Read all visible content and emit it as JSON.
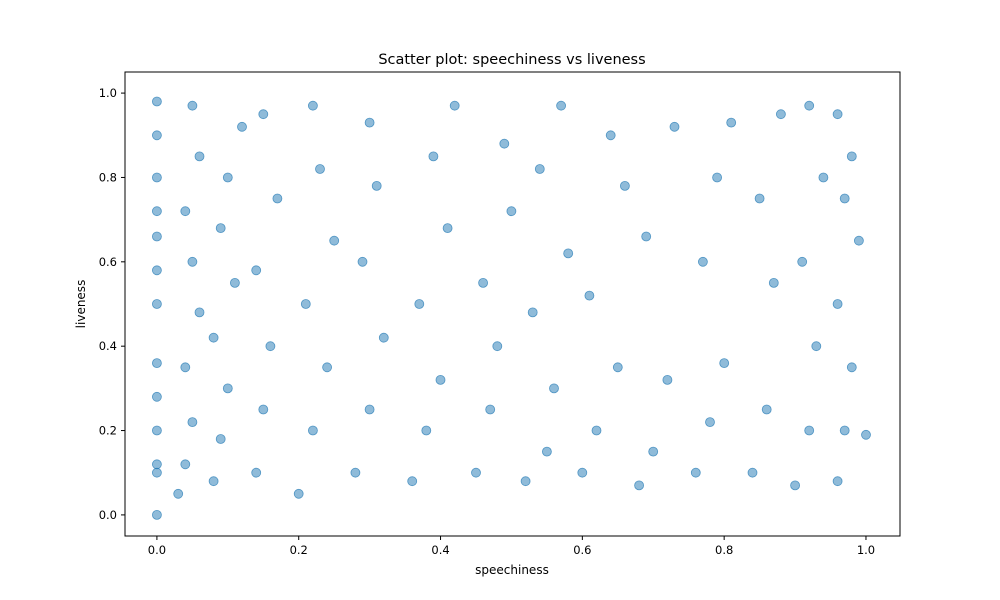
{
  "chart_data": {
    "type": "scatter",
    "title": "Scatter plot: speechiness vs liveness",
    "xlabel": "speechiness",
    "ylabel": "liveness",
    "xlim": [
      -0.045,
      1.048
    ],
    "ylim": [
      -0.05,
      1.05
    ],
    "xticks": [
      0.0,
      0.2,
      0.4,
      0.6,
      0.8,
      1.0
    ],
    "xtick_labels": [
      "0.0",
      "0.2",
      "0.4",
      "0.6",
      "0.8",
      "1.0"
    ],
    "yticks": [
      0.0,
      0.2,
      0.4,
      0.6,
      0.8,
      1.0
    ],
    "ytick_labels": [
      "0.0",
      "0.2",
      "0.4",
      "0.6",
      "0.8",
      "1.0"
    ],
    "grid": false,
    "marker_color": "#1f77b4",
    "marker_alpha": 0.5,
    "series": [
      {
        "points": [
          [
            0.0,
            0.0
          ],
          [
            0.0,
            0.1
          ],
          [
            0.0,
            0.12
          ],
          [
            0.0,
            0.2
          ],
          [
            0.0,
            0.28
          ],
          [
            0.0,
            0.36
          ],
          [
            0.0,
            0.5
          ],
          [
            0.0,
            0.58
          ],
          [
            0.0,
            0.66
          ],
          [
            0.0,
            0.72
          ],
          [
            0.0,
            0.8
          ],
          [
            0.0,
            0.9
          ],
          [
            0.0,
            0.98
          ],
          [
            0.03,
            0.05
          ],
          [
            0.04,
            0.12
          ],
          [
            0.05,
            0.22
          ],
          [
            0.04,
            0.35
          ],
          [
            0.06,
            0.48
          ],
          [
            0.05,
            0.6
          ],
          [
            0.04,
            0.72
          ],
          [
            0.06,
            0.85
          ],
          [
            0.05,
            0.97
          ],
          [
            0.08,
            0.08
          ],
          [
            0.09,
            0.18
          ],
          [
            0.1,
            0.3
          ],
          [
            0.08,
            0.42
          ],
          [
            0.11,
            0.55
          ],
          [
            0.09,
            0.68
          ],
          [
            0.1,
            0.8
          ],
          [
            0.12,
            0.92
          ],
          [
            0.14,
            0.1
          ],
          [
            0.15,
            0.25
          ],
          [
            0.16,
            0.4
          ],
          [
            0.14,
            0.58
          ],
          [
            0.17,
            0.75
          ],
          [
            0.15,
            0.95
          ],
          [
            0.2,
            0.05
          ],
          [
            0.22,
            0.2
          ],
          [
            0.24,
            0.35
          ],
          [
            0.21,
            0.5
          ],
          [
            0.25,
            0.65
          ],
          [
            0.23,
            0.82
          ],
          [
            0.22,
            0.97
          ],
          [
            0.28,
            0.1
          ],
          [
            0.3,
            0.25
          ],
          [
            0.32,
            0.42
          ],
          [
            0.29,
            0.6
          ],
          [
            0.31,
            0.78
          ],
          [
            0.3,
            0.93
          ],
          [
            0.36,
            0.08
          ],
          [
            0.38,
            0.2
          ],
          [
            0.4,
            0.32
          ],
          [
            0.37,
            0.5
          ],
          [
            0.41,
            0.68
          ],
          [
            0.39,
            0.85
          ],
          [
            0.42,
            0.97
          ],
          [
            0.45,
            0.1
          ],
          [
            0.47,
            0.25
          ],
          [
            0.48,
            0.4
          ],
          [
            0.46,
            0.55
          ],
          [
            0.5,
            0.72
          ],
          [
            0.49,
            0.88
          ],
          [
            0.52,
            0.08
          ],
          [
            0.55,
            0.15
          ],
          [
            0.56,
            0.3
          ],
          [
            0.53,
            0.48
          ],
          [
            0.58,
            0.62
          ],
          [
            0.54,
            0.82
          ],
          [
            0.57,
            0.97
          ],
          [
            0.6,
            0.1
          ],
          [
            0.62,
            0.2
          ],
          [
            0.65,
            0.35
          ],
          [
            0.61,
            0.52
          ],
          [
            0.66,
            0.78
          ],
          [
            0.64,
            0.9
          ],
          [
            0.68,
            0.07
          ],
          [
            0.7,
            0.15
          ],
          [
            0.72,
            0.32
          ],
          [
            0.69,
            0.66
          ],
          [
            0.73,
            0.92
          ],
          [
            0.76,
            0.1
          ],
          [
            0.78,
            0.22
          ],
          [
            0.8,
            0.36
          ],
          [
            0.77,
            0.6
          ],
          [
            0.79,
            0.8
          ],
          [
            0.81,
            0.93
          ],
          [
            0.84,
            0.1
          ],
          [
            0.86,
            0.25
          ],
          [
            0.87,
            0.55
          ],
          [
            0.85,
            0.75
          ],
          [
            0.88,
            0.95
          ],
          [
            0.9,
            0.07
          ],
          [
            0.92,
            0.2
          ],
          [
            0.93,
            0.4
          ],
          [
            0.91,
            0.6
          ],
          [
            0.94,
            0.8
          ],
          [
            0.92,
            0.97
          ],
          [
            0.96,
            0.08
          ],
          [
            0.97,
            0.2
          ],
          [
            0.98,
            0.35
          ],
          [
            0.96,
            0.5
          ],
          [
            0.99,
            0.65
          ],
          [
            0.97,
            0.75
          ],
          [
            0.98,
            0.85
          ],
          [
            0.96,
            0.95
          ],
          [
            1.0,
            0.19
          ]
        ]
      }
    ]
  }
}
